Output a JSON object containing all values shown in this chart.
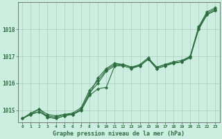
{
  "title": "Graphe pression niveau de la mer (hPa)",
  "background_color": "#cceee0",
  "grid_color": "#aaccbb",
  "line_color": "#2d6e3e",
  "ylim": [
    1014.55,
    1019.0
  ],
  "yticks": [
    1015,
    1016,
    1017,
    1018
  ],
  "xticks": [
    0,
    1,
    2,
    3,
    4,
    5,
    6,
    7,
    8,
    9,
    10,
    11,
    12,
    13,
    14,
    15,
    16,
    17,
    18,
    19,
    20,
    21,
    22,
    23
  ],
  "series": [
    {
      "x": [
        0,
        1,
        2,
        3,
        4,
        5,
        6,
        7,
        8,
        9,
        10,
        11,
        12,
        13,
        14,
        15,
        16,
        17,
        18,
        19,
        20,
        21,
        22,
        23
      ],
      "y": [
        1014.7,
        1014.85,
        1014.95,
        1014.8,
        1014.75,
        1014.85,
        1014.85,
        1015.05,
        1015.65,
        1016.0,
        1016.45,
        1016.65,
        1016.65,
        1016.55,
        1016.65,
        1016.9,
        1016.55,
        1016.65,
        1016.75,
        1016.8,
        1016.95,
        1018.0,
        1018.55,
        1018.7
      ]
    },
    {
      "x": [
        0,
        1,
        2,
        3,
        4,
        5,
        6,
        7,
        8,
        9,
        10,
        11,
        12,
        13,
        14,
        15,
        16,
        17,
        18,
        19,
        20,
        21,
        22,
        23
      ],
      "y": [
        1014.7,
        1014.85,
        1015.05,
        1014.85,
        1014.8,
        1014.85,
        1014.9,
        1015.1,
        1015.75,
        1016.1,
        1016.5,
        1016.7,
        1016.7,
        1016.6,
        1016.65,
        1016.9,
        1016.6,
        1016.7,
        1016.75,
        1016.8,
        1017.0,
        1018.05,
        1018.6,
        1018.75
      ]
    },
    {
      "x": [
        0,
        1,
        2,
        3,
        4,
        5,
        6,
        7,
        8,
        9,
        10,
        11,
        12,
        13,
        14,
        15,
        16,
        17,
        18,
        19,
        20,
        21,
        22,
        23
      ],
      "y": [
        1014.7,
        1014.85,
        1014.95,
        1014.75,
        1014.7,
        1014.8,
        1014.85,
        1015.0,
        1015.55,
        1015.8,
        1015.85,
        1016.65,
        1016.7,
        1016.6,
        1016.7,
        1016.95,
        1016.6,
        1016.7,
        1016.8,
        1016.85,
        1017.0,
        1018.1,
        1018.65,
        1018.8
      ]
    },
    {
      "x": [
        0,
        1,
        2,
        3,
        4,
        5,
        6,
        7,
        8,
        9,
        10,
        11,
        12,
        13,
        14,
        15,
        16,
        17,
        18,
        19,
        20,
        21,
        22,
        23
      ],
      "y": [
        1014.7,
        1014.9,
        1015.05,
        1014.75,
        1014.7,
        1014.8,
        1014.85,
        1015.0,
        1015.6,
        1016.2,
        1016.55,
        1016.75,
        1016.7,
        1016.6,
        1016.65,
        1016.9,
        1016.55,
        1016.65,
        1016.75,
        1016.8,
        1017.0,
        1018.0,
        1018.55,
        1018.7
      ]
    }
  ]
}
